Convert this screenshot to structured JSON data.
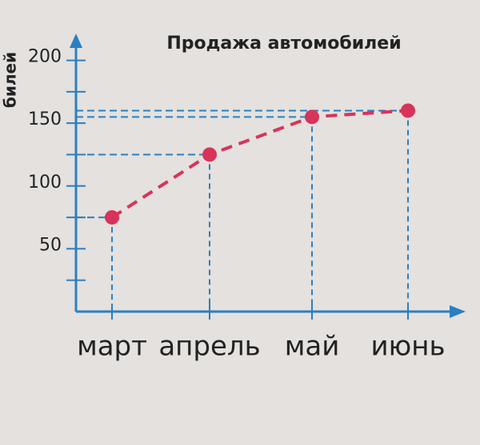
{
  "chart_data": {
    "type": "line",
    "title": "Продажа автомобилей",
    "y_label": "билей",
    "categories": [
      "март",
      "апрель",
      "май",
      "июнь"
    ],
    "values": [
      75,
      125,
      155,
      160
    ],
    "color": "#d8335a",
    "axis_color": "#2b7fc1",
    "ylim": [
      0,
      215
    ],
    "yticks": [
      50,
      100,
      150,
      200
    ],
    "minor_yticks": [
      25,
      75,
      125,
      175
    ],
    "guide_lines": true
  }
}
